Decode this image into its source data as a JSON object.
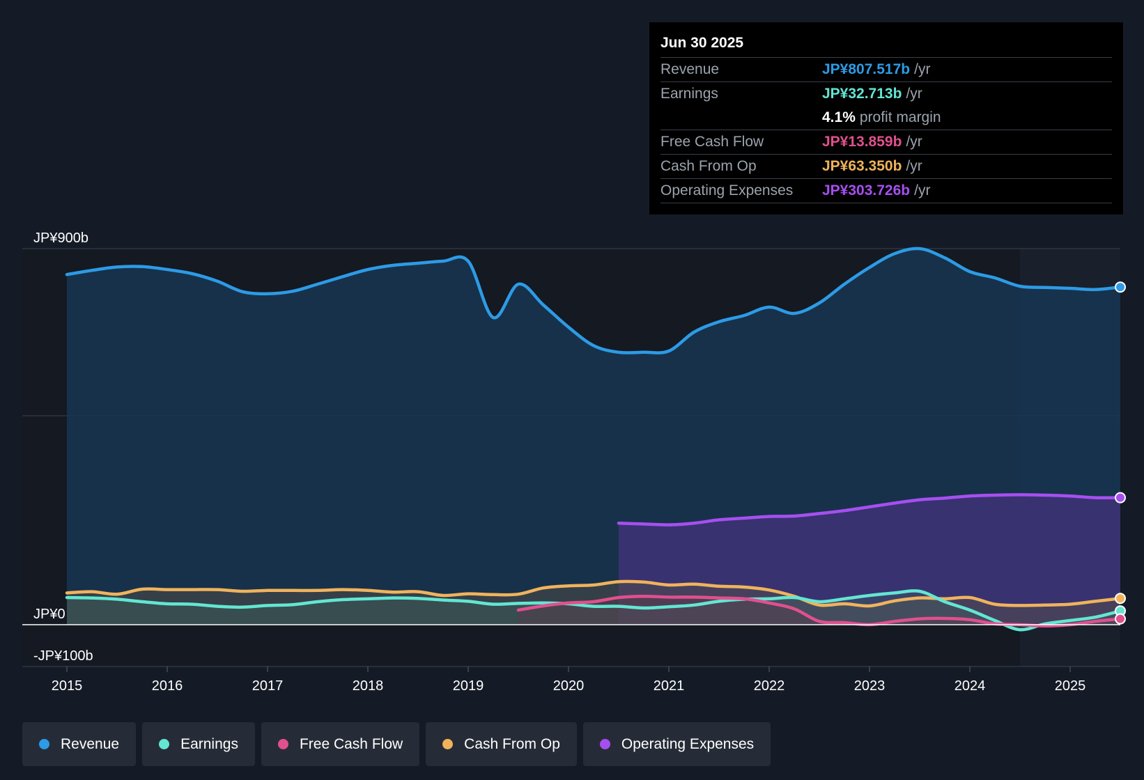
{
  "tooltip": {
    "date": "Jun 30 2025",
    "rows": [
      {
        "label": "Revenue",
        "value": "JP¥807.517b",
        "unit": "/yr",
        "color": "#2d9be5"
      },
      {
        "label": "Earnings",
        "value": "JP¥32.713b",
        "unit": "/yr",
        "color": "#63e6d2"
      },
      {
        "label": "",
        "value": "4.1%",
        "unit": "profit margin",
        "color": "#ffffff"
      },
      {
        "label": "Free Cash Flow",
        "value": "JP¥13.859b",
        "unit": "/yr",
        "color": "#e0508e"
      },
      {
        "label": "Cash From Op",
        "value": "JP¥63.350b",
        "unit": "/yr",
        "color": "#f0b35c"
      },
      {
        "label": "Operating Expenses",
        "value": "JP¥303.726b",
        "unit": "/yr",
        "color": "#a64ff0"
      }
    ]
  },
  "legend": [
    {
      "label": "Revenue",
      "color": "#2d9be5"
    },
    {
      "label": "Earnings",
      "color": "#63e6d2"
    },
    {
      "label": "Free Cash Flow",
      "color": "#e0508e"
    },
    {
      "label": "Cash From Op",
      "color": "#f0b35c"
    },
    {
      "label": "Operating Expenses",
      "color": "#a64ff0"
    }
  ],
  "chart_data": {
    "type": "area",
    "title": "",
    "xlabel": "",
    "ylabel": "",
    "xlim": [
      2015.0,
      2025.5
    ],
    "ylim": [
      -100,
      900
    ],
    "y_tick_labels": [
      {
        "value": 900,
        "label": "JP¥900b"
      },
      {
        "value": 0,
        "label": "JP¥0"
      },
      {
        "value": -100,
        "label": "-JP¥100b"
      }
    ],
    "gridlines": [
      900,
      500
    ],
    "x_ticks": [
      {
        "value": 2015,
        "label": "2015"
      },
      {
        "value": 2016,
        "label": "2016"
      },
      {
        "value": 2017,
        "label": "2017"
      },
      {
        "value": 2018,
        "label": "2018"
      },
      {
        "value": 2019,
        "label": "2019"
      },
      {
        "value": 2020,
        "label": "2020"
      },
      {
        "value": 2021,
        "label": "2021"
      },
      {
        "value": 2022,
        "label": "2022"
      },
      {
        "value": 2023,
        "label": "2023"
      },
      {
        "value": 2024,
        "label": "2024"
      },
      {
        "value": 2025,
        "label": "2025"
      }
    ],
    "highlight_start": 2024.5,
    "series": [
      {
        "name": "Revenue",
        "color": "#2d9be5",
        "fill": "#173652",
        "fill_opacity": 0.85,
        "x": [
          2015.0,
          2015.25,
          2015.5,
          2015.75,
          2016.0,
          2016.25,
          2016.5,
          2016.75,
          2017.0,
          2017.25,
          2017.5,
          2017.75,
          2018.0,
          2018.25,
          2018.5,
          2018.75,
          2019.0,
          2019.25,
          2019.5,
          2019.75,
          2020.0,
          2020.25,
          2020.5,
          2020.75,
          2021.0,
          2021.25,
          2021.5,
          2021.75,
          2022.0,
          2022.25,
          2022.5,
          2022.75,
          2023.0,
          2023.25,
          2023.5,
          2023.75,
          2024.0,
          2024.25,
          2024.5,
          2024.75,
          2025.0,
          2025.25,
          2025.5
        ],
        "values": [
          838,
          848,
          856,
          857,
          850,
          840,
          822,
          797,
          792,
          798,
          815,
          833,
          850,
          860,
          865,
          870,
          870,
          735,
          815,
          765,
          712,
          668,
          652,
          652,
          655,
          700,
          725,
          740,
          760,
          745,
          770,
          815,
          855,
          888,
          900,
          878,
          845,
          830,
          810,
          807,
          805,
          802,
          808
        ]
      },
      {
        "name": "Operating Expenses",
        "color": "#a64ff0",
        "fill": "#3e3377",
        "fill_opacity": 0.85,
        "x": [
          2020.5,
          2020.75,
          2021.0,
          2021.25,
          2021.5,
          2021.75,
          2022.0,
          2022.25,
          2022.5,
          2022.75,
          2023.0,
          2023.25,
          2023.5,
          2023.75,
          2024.0,
          2024.25,
          2024.5,
          2024.75,
          2025.0,
          2025.25,
          2025.5
        ],
        "values": [
          243,
          241,
          239,
          243,
          251,
          255,
          259,
          260,
          266,
          273,
          282,
          291,
          299,
          303,
          308,
          310,
          311,
          310,
          308,
          304,
          304
        ]
      },
      {
        "name": "Cash From Op",
        "color": "#f0b35c",
        "fill": "#5a5245",
        "fill_opacity": 0.45,
        "x": [
          2015.0,
          2015.25,
          2015.5,
          2015.75,
          2016.0,
          2016.25,
          2016.5,
          2016.75,
          2017.0,
          2017.25,
          2017.5,
          2017.75,
          2018.0,
          2018.25,
          2018.5,
          2018.75,
          2019.0,
          2019.25,
          2019.5,
          2019.75,
          2020.0,
          2020.25,
          2020.5,
          2020.75,
          2021.0,
          2021.25,
          2021.5,
          2021.75,
          2022.0,
          2022.25,
          2022.5,
          2022.75,
          2023.0,
          2023.25,
          2023.5,
          2023.75,
          2024.0,
          2024.25,
          2024.5,
          2024.75,
          2025.0,
          2025.25,
          2025.5
        ],
        "values": [
          76,
          79,
          73,
          85,
          84,
          84,
          84,
          80,
          82,
          82,
          82,
          84,
          82,
          78,
          79,
          70,
          74,
          72,
          73,
          88,
          93,
          95,
          103,
          102,
          95,
          97,
          92,
          90,
          83,
          68,
          47,
          50,
          45,
          57,
          64,
          62,
          65,
          49,
          46,
          47,
          49,
          56,
          63
        ]
      },
      {
        "name": "Earnings",
        "color": "#63e6d2",
        "fill": "#3d6762",
        "fill_opacity": 0.35,
        "x": [
          2015.0,
          2015.25,
          2015.5,
          2015.75,
          2016.0,
          2016.25,
          2016.5,
          2016.75,
          2017.0,
          2017.25,
          2017.5,
          2017.75,
          2018.0,
          2018.25,
          2018.5,
          2018.75,
          2019.0,
          2019.25,
          2019.5,
          2019.75,
          2020.0,
          2020.25,
          2020.5,
          2020.75,
          2021.0,
          2021.25,
          2021.5,
          2021.75,
          2022.0,
          2022.25,
          2022.5,
          2022.75,
          2023.0,
          2023.25,
          2023.5,
          2023.75,
          2024.0,
          2024.25,
          2024.5,
          2024.75,
          2025.0,
          2025.25,
          2025.5
        ],
        "values": [
          65,
          64,
          61,
          55,
          50,
          49,
          44,
          42,
          46,
          48,
          55,
          60,
          62,
          64,
          63,
          59,
          56,
          49,
          51,
          52,
          50,
          44,
          44,
          40,
          43,
          47,
          56,
          61,
          62,
          65,
          55,
          62,
          70,
          76,
          80,
          55,
          35,
          10,
          -12,
          2,
          10,
          18,
          33
        ]
      },
      {
        "name": "Free Cash Flow",
        "color": "#e0508e",
        "fill": "#5a3a4c",
        "fill_opacity": 0.45,
        "x": [
          2019.5,
          2019.75,
          2020.0,
          2020.25,
          2020.5,
          2020.75,
          2021.0,
          2021.25,
          2021.5,
          2021.75,
          2022.0,
          2022.25,
          2022.5,
          2022.75,
          2023.0,
          2023.25,
          2023.5,
          2023.75,
          2024.0,
          2024.25,
          2024.5,
          2024.75,
          2025.0,
          2025.25,
          2025.5
        ],
        "values": [
          35,
          45,
          52,
          55,
          65,
          68,
          66,
          66,
          64,
          62,
          52,
          38,
          8,
          5,
          0,
          8,
          14,
          15,
          12,
          2,
          0,
          -3,
          0,
          8,
          14
        ]
      }
    ]
  }
}
